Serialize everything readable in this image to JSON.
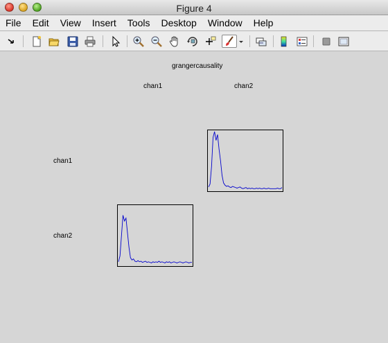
{
  "window": {
    "title": "Figure 4",
    "controls": [
      "close-icon",
      "minimize-icon",
      "zoom-icon"
    ]
  },
  "menu": [
    "File",
    "Edit",
    "View",
    "Insert",
    "Tools",
    "Desktop",
    "Window",
    "Help"
  ],
  "toolbar": [
    "dock-arrow-icon",
    "new-figure-icon",
    "open-file-icon",
    "save-icon",
    "print-icon",
    "edit-plot-arrow-icon",
    "zoom-in-icon",
    "zoom-out-icon",
    "pan-hand-icon",
    "rotate-3d-icon",
    "data-cursor-icon",
    "brush-icon",
    "brush-dropdown-icon",
    "link-plot-icon",
    "colorbar-icon",
    "legend-icon",
    "hide-plot-tools-icon",
    "show-plot-tools-icon"
  ],
  "figure": {
    "title": "grangercausality",
    "column_labels": [
      "chan1",
      "chan2"
    ],
    "row_labels": [
      "chan1",
      "chan2"
    ],
    "line_color": "#0000cc"
  },
  "chart_data": [
    {
      "type": "line",
      "series": [
        {
          "values": [
            0.05,
            0.1,
            0.4,
            0.9,
            1.0,
            0.85,
            0.95,
            0.7,
            0.5,
            0.25,
            0.12,
            0.08,
            0.06,
            0.07,
            0.05,
            0.04,
            0.06,
            0.05,
            0.04,
            0.03,
            0.04,
            0.05,
            0.03,
            0.02,
            0.03,
            0.04,
            0.02,
            0.03,
            0.02,
            0.03,
            0.02,
            0.02,
            0.03,
            0.02,
            0.03,
            0.02,
            0.02,
            0.03,
            0.02,
            0.02,
            0.03,
            0.02,
            0.02,
            0.02,
            0.02,
            0.02,
            0.03,
            0.02,
            0.02,
            0.04
          ]
        }
      ]
    },
    {
      "type": "line",
      "series": [
        {
          "values": [
            0.05,
            0.15,
            0.5,
            0.85,
            0.75,
            0.8,
            0.55,
            0.3,
            0.12,
            0.08,
            0.1,
            0.06,
            0.05,
            0.07,
            0.05,
            0.06,
            0.04,
            0.05,
            0.06,
            0.04,
            0.05,
            0.04,
            0.03,
            0.05,
            0.04,
            0.05,
            0.04,
            0.06,
            0.04,
            0.05,
            0.04,
            0.03,
            0.05,
            0.04,
            0.05,
            0.03,
            0.04,
            0.05,
            0.04,
            0.03,
            0.04,
            0.05,
            0.04,
            0.03,
            0.04,
            0.05,
            0.04,
            0.03,
            0.04,
            0.04
          ]
        }
      ]
    }
  ]
}
